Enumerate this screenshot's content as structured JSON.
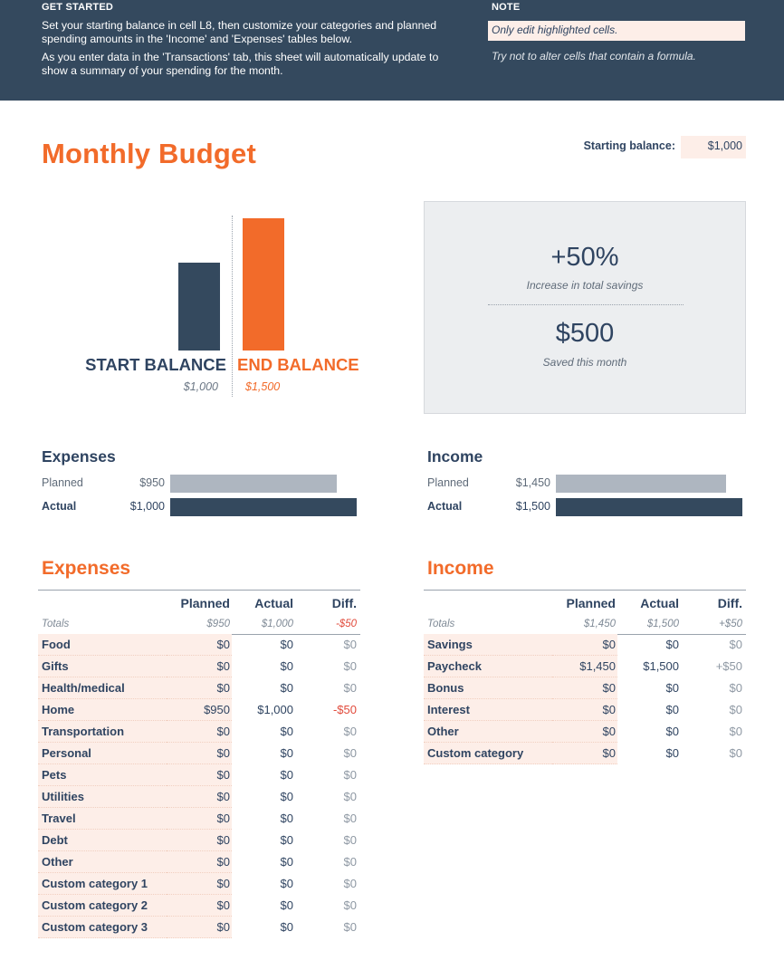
{
  "banner": {
    "get_started_title": "GET STARTED",
    "get_started_p1": "Set your starting balance in cell L8, then customize your categories and planned spending amounts in the 'Income' and 'Expenses' tables below.",
    "get_started_p2": "As you enter data in the 'Transactions' tab, this sheet will automatically update to show a summary of your spending for the month.",
    "note_title": "NOTE",
    "note_box": "Only edit highlighted cells.",
    "note_hint": "Try not to alter cells that contain a formula."
  },
  "title": "Monthly Budget",
  "starting_balance": {
    "label": "Starting balance:",
    "value": "$1,000"
  },
  "balance_chart": {
    "start_label": "START BALANCE",
    "start_value": "$1,000",
    "end_label": "END BALANCE",
    "end_value": "$1,500",
    "start_amount": 1000,
    "end_amount": 1500,
    "start_color": "#34495e",
    "end_color": "#f26b2a"
  },
  "savings": {
    "percent": "+50%",
    "percent_label": "Increase in total savings",
    "amount": "$500",
    "amount_label": "Saved this month"
  },
  "summary": {
    "expenses": {
      "title": "Expenses",
      "planned_label": "Planned",
      "planned_value": "$950",
      "planned_amount": 950,
      "actual_label": "Actual",
      "actual_value": "$1,000",
      "actual_amount": 1000
    },
    "income": {
      "title": "Income",
      "planned_label": "Planned",
      "planned_value": "$1,450",
      "planned_amount": 1450,
      "actual_label": "Actual",
      "actual_value": "$1,500",
      "actual_amount": 1500
    }
  },
  "expenses_table": {
    "title": "Expenses",
    "headers": {
      "planned": "Planned",
      "actual": "Actual",
      "diff": "Diff."
    },
    "totals": {
      "label": "Totals",
      "planned": "$950",
      "actual": "$1,000",
      "diff": "-$50"
    },
    "rows": [
      {
        "category": "Food",
        "planned": "$0",
        "actual": "$0",
        "diff": "$0"
      },
      {
        "category": "Gifts",
        "planned": "$0",
        "actual": "$0",
        "diff": "$0"
      },
      {
        "category": "Health/medical",
        "planned": "$0",
        "actual": "$0",
        "diff": "$0"
      },
      {
        "category": "Home",
        "planned": "$950",
        "actual": "$1,000",
        "diff": "-$50"
      },
      {
        "category": "Transportation",
        "planned": "$0",
        "actual": "$0",
        "diff": "$0"
      },
      {
        "category": "Personal",
        "planned": "$0",
        "actual": "$0",
        "diff": "$0"
      },
      {
        "category": "Pets",
        "planned": "$0",
        "actual": "$0",
        "diff": "$0"
      },
      {
        "category": "Utilities",
        "planned": "$0",
        "actual": "$0",
        "diff": "$0"
      },
      {
        "category": "Travel",
        "planned": "$0",
        "actual": "$0",
        "diff": "$0"
      },
      {
        "category": "Debt",
        "planned": "$0",
        "actual": "$0",
        "diff": "$0"
      },
      {
        "category": "Other",
        "planned": "$0",
        "actual": "$0",
        "diff": "$0"
      },
      {
        "category": "Custom category 1",
        "planned": "$0",
        "actual": "$0",
        "diff": "$0"
      },
      {
        "category": "Custom category 2",
        "planned": "$0",
        "actual": "$0",
        "diff": "$0"
      },
      {
        "category": "Custom category 3",
        "planned": "$0",
        "actual": "$0",
        "diff": "$0"
      }
    ]
  },
  "income_table": {
    "title": "Income",
    "headers": {
      "planned": "Planned",
      "actual": "Actual",
      "diff": "Diff."
    },
    "totals": {
      "label": "Totals",
      "planned": "$1,450",
      "actual": "$1,500",
      "diff": "+$50"
    },
    "rows": [
      {
        "category": "Savings",
        "planned": "$0",
        "actual": "$0",
        "diff": "$0"
      },
      {
        "category": "Paycheck",
        "planned": "$1,450",
        "actual": "$1,500",
        "diff": "+$50"
      },
      {
        "category": "Bonus",
        "planned": "$0",
        "actual": "$0",
        "diff": "$0"
      },
      {
        "category": "Interest",
        "planned": "$0",
        "actual": "$0",
        "diff": "$0"
      },
      {
        "category": "Other",
        "planned": "$0",
        "actual": "$0",
        "diff": "$0"
      },
      {
        "category": "Custom category",
        "planned": "$0",
        "actual": "$0",
        "diff": "$0"
      }
    ]
  },
  "colors": {
    "navy": "#34495e",
    "orange": "#f26b2a",
    "highlight": "#fdeee8",
    "negative": "#e14a3b",
    "planned_bar": "#aeb6c0"
  }
}
